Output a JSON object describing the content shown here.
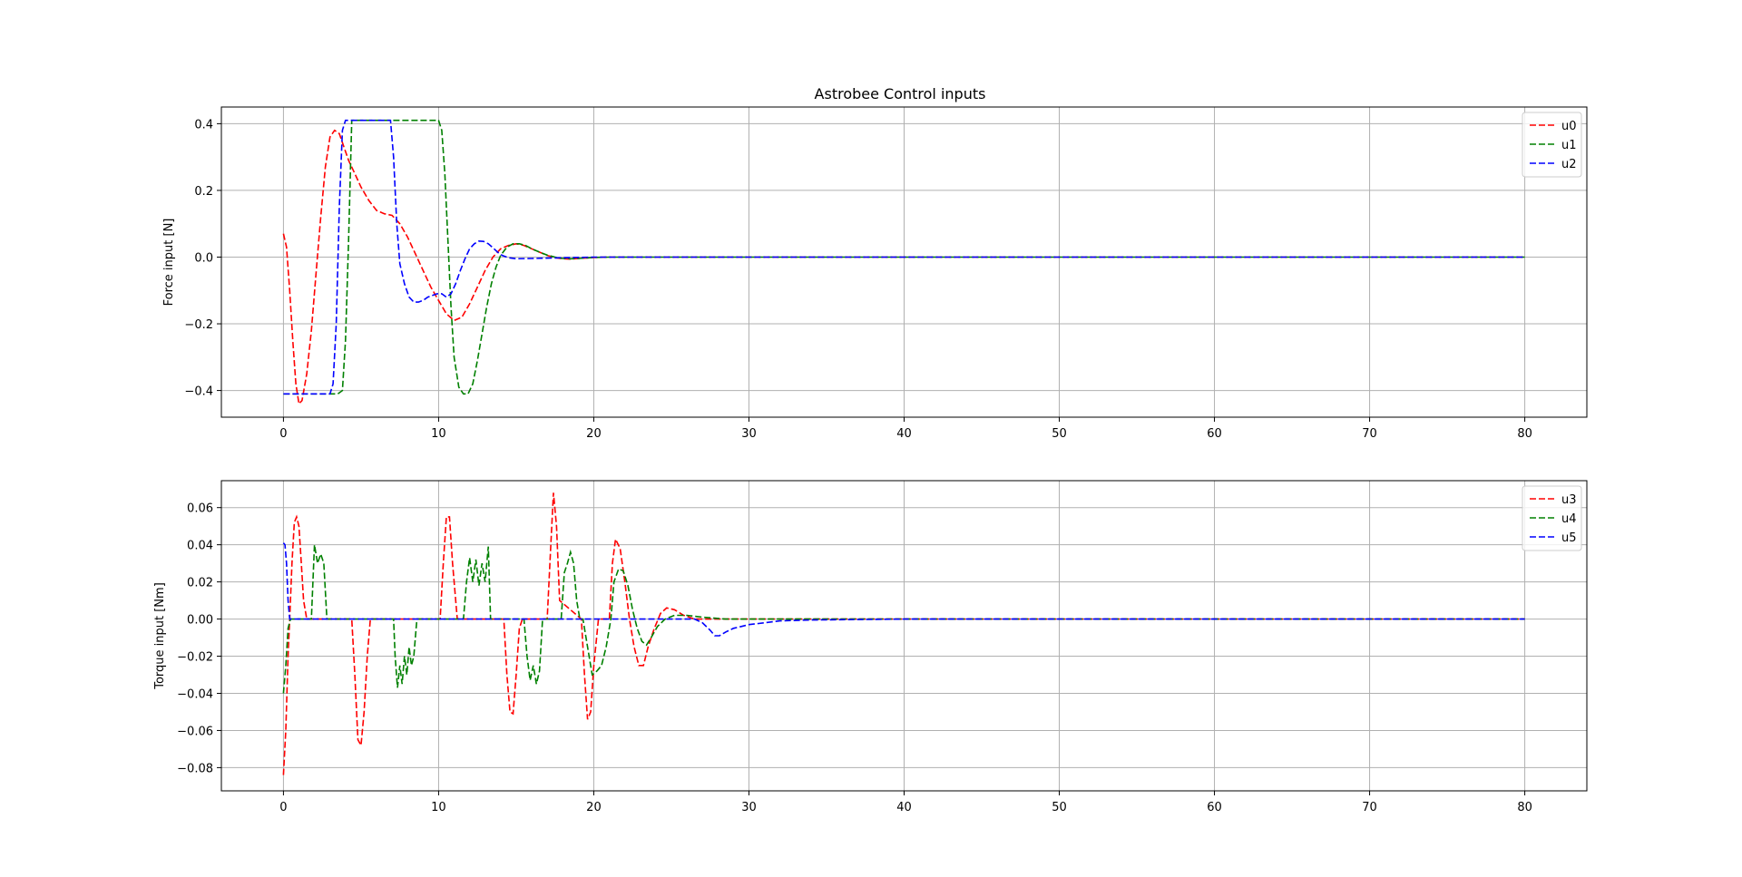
{
  "chart_data": [
    {
      "type": "line",
      "title": "Astrobee Control inputs",
      "xlabel": "",
      "ylabel": "Force input [N]",
      "xlim": [
        -4,
        84
      ],
      "ylim": [
        -0.48,
        0.45
      ],
      "xticks": [
        0,
        10,
        20,
        30,
        40,
        50,
        60,
        70,
        80
      ],
      "yticks": [
        -0.4,
        -0.2,
        0.0,
        0.2,
        0.4
      ],
      "ytick_labels": [
        "−0.4",
        "−0.2",
        "0.0",
        "0.2",
        "0.4"
      ],
      "xtick_labels": [
        "0",
        "10",
        "20",
        "30",
        "40",
        "50",
        "60",
        "70",
        "80"
      ],
      "grid": true,
      "legend": "top-right",
      "series": [
        {
          "name": "u0",
          "color": "#ff0000",
          "x": [
            0,
            0.2,
            0.4,
            0.6,
            0.8,
            1.0,
            1.2,
            1.5,
            1.8,
            2.1,
            2.4,
            2.7,
            3.0,
            3.3,
            3.6,
            3.9,
            4.2,
            4.6,
            5.0,
            5.5,
            6.0,
            6.5,
            7.0,
            7.5,
            8.0,
            8.5,
            9.0,
            9.5,
            10.0,
            10.5,
            11.0,
            11.5,
            12.0,
            12.5,
            13.0,
            13.5,
            14.0,
            14.5,
            15.0,
            15.5,
            16.0,
            16.5,
            17.0,
            17.5,
            18.0,
            18.5,
            19.0,
            20.0,
            21.0,
            22.0,
            25.0,
            30.0,
            40.0,
            50.0,
            60.0,
            70.0,
            80.0
          ],
          "y": [
            0.07,
            0.03,
            -0.1,
            -0.25,
            -0.38,
            -0.44,
            -0.43,
            -0.35,
            -0.22,
            -0.05,
            0.12,
            0.27,
            0.36,
            0.38,
            0.37,
            0.33,
            0.29,
            0.25,
            0.21,
            0.17,
            0.14,
            0.13,
            0.125,
            0.1,
            0.06,
            0.01,
            -0.04,
            -0.09,
            -0.13,
            -0.17,
            -0.19,
            -0.18,
            -0.14,
            -0.09,
            -0.04,
            0.0,
            0.025,
            0.035,
            0.04,
            0.035,
            0.025,
            0.015,
            0.005,
            -0.002,
            -0.005,
            -0.006,
            -0.004,
            -0.001,
            0.0,
            0.0,
            0.0,
            0.0,
            0.0,
            0.0,
            0.0,
            0.0,
            0.0
          ]
        },
        {
          "name": "u1",
          "color": "#008000",
          "x": [
            0,
            3.5,
            3.8,
            4.0,
            4.2,
            4.4,
            5.0,
            10.0,
            10.2,
            10.4,
            10.6,
            10.8,
            11.0,
            11.3,
            11.6,
            11.9,
            12.2,
            12.5,
            12.8,
            13.1,
            13.4,
            13.7,
            14.0,
            14.4,
            14.8,
            15.2,
            15.6,
            16.0,
            16.5,
            17.0,
            17.5,
            18.0,
            18.5,
            19.0,
            20.0,
            21.0,
            30.0,
            40.0,
            50.0,
            60.0,
            70.0,
            80.0
          ],
          "y": [
            -0.41,
            -0.41,
            -0.4,
            -0.25,
            0.05,
            0.41,
            0.41,
            0.41,
            0.38,
            0.25,
            0.05,
            -0.15,
            -0.3,
            -0.39,
            -0.41,
            -0.41,
            -0.38,
            -0.31,
            -0.23,
            -0.15,
            -0.08,
            -0.03,
            0.005,
            0.03,
            0.04,
            0.04,
            0.035,
            0.025,
            0.015,
            0.006,
            0.0,
            -0.004,
            -0.005,
            -0.004,
            -0.001,
            0.0,
            0.0,
            0.0,
            0.0,
            0.0,
            0.0,
            0.0
          ]
        },
        {
          "name": "u2",
          "color": "#0000ff",
          "x": [
            0,
            3.0,
            3.2,
            3.4,
            3.6,
            3.8,
            4.0,
            6.9,
            7.1,
            7.3,
            7.5,
            7.8,
            8.1,
            8.4,
            8.7,
            9.0,
            9.3,
            9.6,
            9.9,
            10.2,
            10.5,
            10.8,
            11.1,
            11.4,
            11.7,
            12.0,
            12.3,
            12.6,
            12.9,
            13.2,
            13.5,
            13.8,
            14.1,
            14.5,
            15.0,
            16.0,
            18.0,
            20.0,
            30.0,
            40.0,
            50.0,
            60.0,
            70.0,
            80.0
          ],
          "y": [
            -0.41,
            -0.41,
            -0.38,
            -0.2,
            0.15,
            0.38,
            0.41,
            0.41,
            0.3,
            0.1,
            -0.02,
            -0.08,
            -0.12,
            -0.135,
            -0.135,
            -0.13,
            -0.12,
            -0.115,
            -0.11,
            -0.11,
            -0.12,
            -0.11,
            -0.08,
            -0.04,
            -0.005,
            0.025,
            0.04,
            0.048,
            0.047,
            0.04,
            0.028,
            0.015,
            0.005,
            -0.002,
            -0.005,
            -0.004,
            -0.002,
            0.0,
            0.0,
            0.0,
            0.0,
            0.0,
            0.0,
            0.0
          ]
        }
      ]
    },
    {
      "type": "line",
      "title": "",
      "xlabel": "",
      "ylabel": "Torque input [Nm]",
      "xlim": [
        -4,
        84
      ],
      "ylim": [
        -0.0925,
        0.0745
      ],
      "xticks": [
        0,
        10,
        20,
        30,
        40,
        50,
        60,
        70,
        80
      ],
      "yticks": [
        -0.08,
        -0.06,
        -0.04,
        -0.02,
        0.0,
        0.02,
        0.04,
        0.06
      ],
      "ytick_labels": [
        "−0.08",
        "−0.06",
        "−0.04",
        "−0.02",
        "0.00",
        "0.02",
        "0.04",
        "0.06"
      ],
      "xtick_labels": [
        "0",
        "10",
        "20",
        "30",
        "40",
        "50",
        "60",
        "70",
        "80"
      ],
      "grid": true,
      "legend": "top-right",
      "series": [
        {
          "name": "u3",
          "color": "#ff0000",
          "x": [
            0,
            0.15,
            0.3,
            0.4,
            0.55,
            0.7,
            0.85,
            1.0,
            1.15,
            1.3,
            1.5,
            4.4,
            4.6,
            4.8,
            5.0,
            5.2,
            5.4,
            5.6,
            10.1,
            10.3,
            10.5,
            10.7,
            10.9,
            11.2,
            14.2,
            14.4,
            14.6,
            14.8,
            15.0,
            15.2,
            15.4,
            17.0,
            17.2,
            17.4,
            17.6,
            17.8,
            19.2,
            19.4,
            19.6,
            19.8,
            20.0,
            20.3,
            21.0,
            21.2,
            21.4,
            21.7,
            22.0,
            22.3,
            22.6,
            22.9,
            23.2,
            23.5,
            23.9,
            24.3,
            24.7,
            25.2,
            25.8,
            26.5,
            27.5,
            29.0,
            40.0,
            50.0,
            60.0,
            70.0,
            80.0
          ],
          "y": [
            -0.084,
            -0.06,
            -0.02,
            0.0,
            0.03,
            0.052,
            0.055,
            0.05,
            0.03,
            0.01,
            0.0,
            0.0,
            -0.03,
            -0.065,
            -0.068,
            -0.05,
            -0.02,
            0.0,
            0.0,
            0.03,
            0.055,
            0.055,
            0.03,
            0.0,
            0.0,
            -0.03,
            -0.05,
            -0.051,
            -0.03,
            -0.005,
            0.0,
            0.0,
            0.035,
            0.068,
            0.05,
            0.01,
            0.0,
            -0.03,
            -0.054,
            -0.05,
            -0.025,
            0.0,
            0.0,
            0.03,
            0.043,
            0.038,
            0.02,
            0.0,
            -0.015,
            -0.025,
            -0.025,
            -0.015,
            -0.005,
            0.003,
            0.006,
            0.005,
            0.002,
            0.0,
            0.0,
            0.0,
            0.0,
            0.0,
            0.0,
            0.0,
            0.0
          ]
        },
        {
          "name": "u4",
          "color": "#008000",
          "x": [
            0,
            0.15,
            0.3,
            0.45,
            1.8,
            1.9,
            2.0,
            2.2,
            2.4,
            2.6,
            2.8,
            3.0,
            7.1,
            7.2,
            7.35,
            7.5,
            7.65,
            7.8,
            7.95,
            8.1,
            8.25,
            8.4,
            8.6,
            11.6,
            11.8,
            12.0,
            12.2,
            12.4,
            12.6,
            12.8,
            13.0,
            13.2,
            13.35,
            15.5,
            15.7,
            15.9,
            16.1,
            16.3,
            16.5,
            16.7,
            17.9,
            18.1,
            18.3,
            18.5,
            18.7,
            18.9,
            19.1,
            19.3,
            19.9,
            20.2,
            20.5,
            20.8,
            21.1,
            21.3,
            21.6,
            21.9,
            22.2,
            22.5,
            22.8,
            23.1,
            23.4,
            23.7,
            24.1,
            24.6,
            25.2,
            26.0,
            27.0,
            28.5,
            30.0,
            40.0,
            50.0,
            60.0,
            70.0,
            80.0
          ],
          "y": [
            -0.04,
            -0.025,
            -0.005,
            0.0,
            0.0,
            0.02,
            0.04,
            0.03,
            0.035,
            0.03,
            0.0,
            0.0,
            0.0,
            -0.02,
            -0.037,
            -0.025,
            -0.035,
            -0.02,
            -0.03,
            -0.015,
            -0.025,
            -0.02,
            0.0,
            0.0,
            0.02,
            0.033,
            0.02,
            0.032,
            0.018,
            0.03,
            0.02,
            0.039,
            0.0,
            0.0,
            -0.02,
            -0.033,
            -0.025,
            -0.035,
            -0.028,
            0.0,
            0.0,
            0.025,
            0.03,
            0.036,
            0.03,
            0.01,
            0.0,
            0.0,
            -0.03,
            -0.028,
            -0.025,
            -0.015,
            0.0,
            0.02,
            0.027,
            0.026,
            0.018,
            0.005,
            -0.005,
            -0.012,
            -0.014,
            -0.01,
            -0.004,
            0.0,
            0.002,
            0.002,
            0.001,
            0.0,
            0.0,
            0.0,
            0.0,
            0.0,
            0.0,
            0.0
          ]
        },
        {
          "name": "u5",
          "color": "#0000ff",
          "x": [
            0,
            0.1,
            0.2,
            0.3,
            0.4,
            26.5,
            27.0,
            27.5,
            27.8,
            28.1,
            28.5,
            29.0,
            29.5,
            30.0,
            31.0,
            32.0,
            34.0,
            40.0,
            50.0,
            60.0,
            70.0,
            80.0
          ],
          "y": [
            0.041,
            0.04,
            0.03,
            0.01,
            0.0,
            0.0,
            -0.002,
            -0.006,
            -0.009,
            -0.009,
            -0.007,
            -0.005,
            -0.004,
            -0.003,
            -0.002,
            -0.001,
            -0.0005,
            0.0,
            0.0,
            0.0,
            0.0,
            0.0
          ]
        }
      ]
    }
  ]
}
